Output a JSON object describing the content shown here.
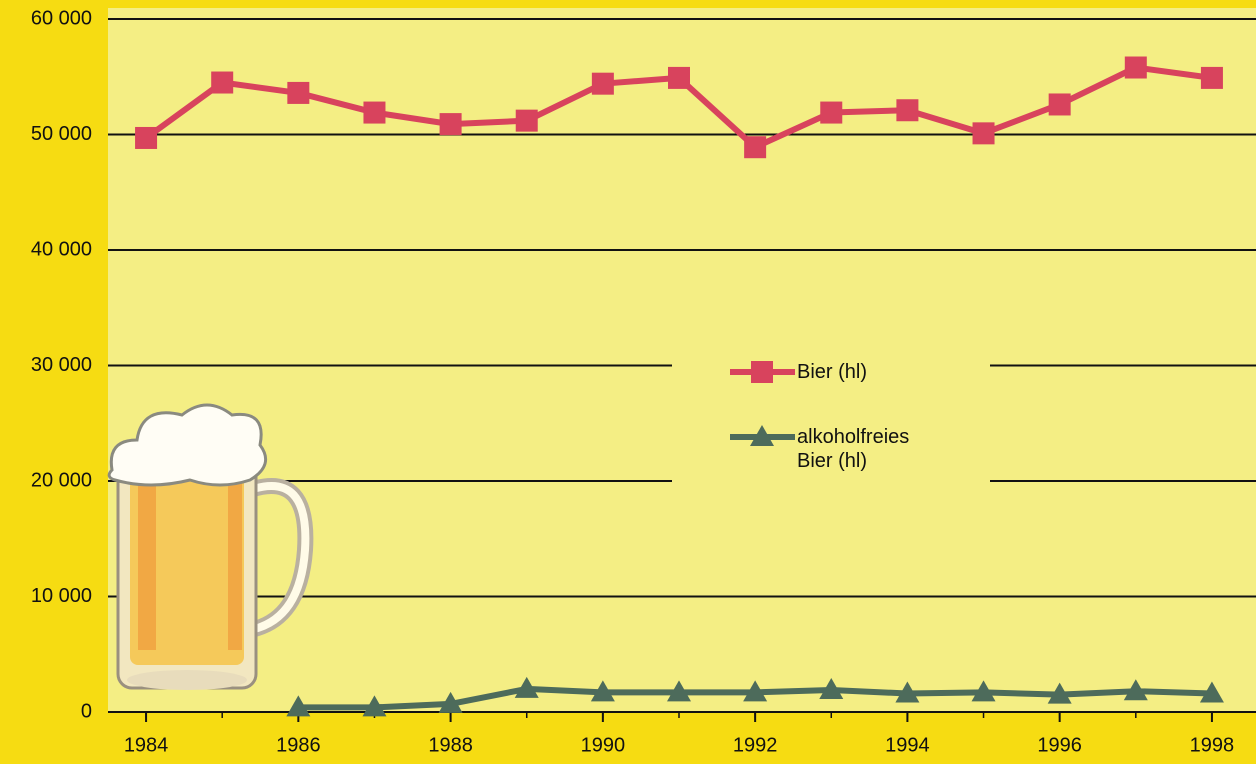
{
  "chart_data": {
    "type": "line",
    "x": [
      1984,
      1985,
      1986,
      1987,
      1988,
      1989,
      1990,
      1991,
      1992,
      1993,
      1994,
      1995,
      1996,
      1997,
      1998
    ],
    "series": [
      {
        "name": "Bier (hl)",
        "color": "#d8435d",
        "marker": "square",
        "values": [
          49700,
          54500,
          53600,
          51900,
          50900,
          51200,
          54400,
          54900,
          48900,
          51900,
          52100,
          50100,
          52600,
          55800,
          54900
        ]
      },
      {
        "name": "alkoholfreies Bier (hl)",
        "color": "#4d6b5b",
        "marker": "triangle",
        "values": [
          null,
          null,
          400,
          400,
          700,
          2000,
          1700,
          1700,
          1700,
          1900,
          1600,
          1700,
          1500,
          1800,
          1600
        ]
      }
    ],
    "xlim": [
      1983.5,
      1998.5
    ],
    "xticks": [
      1984,
      1986,
      1988,
      1990,
      1992,
      1994,
      1996,
      1998
    ],
    "ylim": [
      0,
      60000
    ],
    "yticks": [
      0,
      {
        "value": 10000,
        "label": "10 000"
      },
      {
        "value": 20000,
        "label": "20 000"
      },
      {
        "value": 30000,
        "label": "30 000"
      },
      {
        "value": 40000,
        "label": "40 000"
      },
      {
        "value": 50000,
        "label": "50 000"
      },
      {
        "value": 60000,
        "label": "60 000"
      }
    ],
    "grid": true
  }
}
